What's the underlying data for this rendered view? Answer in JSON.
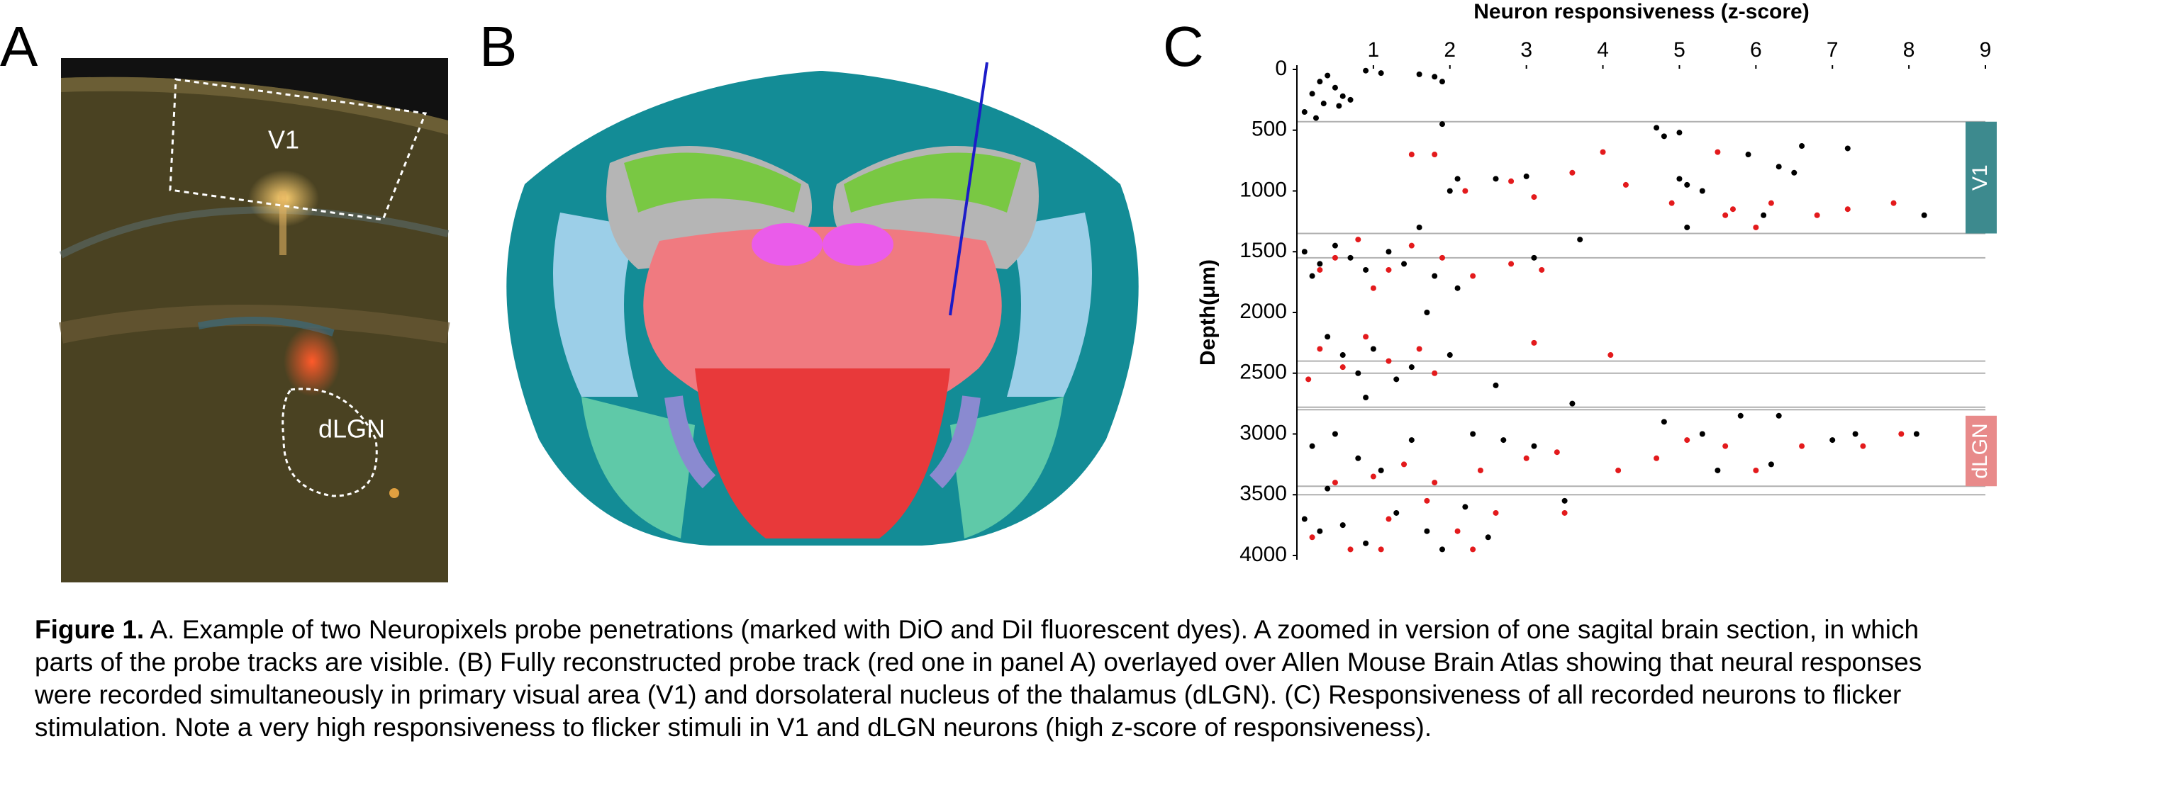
{
  "panels": [
    "A",
    "B",
    "C"
  ],
  "panel_a": {
    "labels": [
      "V1",
      "dLGN"
    ]
  },
  "caption": {
    "label": "Figure 1.",
    "text": "A. Example of two Neuropixels probe penetrations (marked with DiO and DiI fluorescent dyes). A zoomed in version of one sagital brain section, in which parts of the probe tracks are visible. (B) Fully reconstructed probe track (red one in panel A) overlayed over Allen Mouse Brain Atlas showing that neural responses were recorded simultaneously in primary visual area (V1) and dorsolateral nucleus of the thalamus (dLGN). (C) Responsiveness of all recorded neurons to flicker stimulation. Note a very high responsiveness to flicker stimuli in V1 and dLGN neurons (high z-score of responsiveness)."
  },
  "chart_data": {
    "type": "scatter",
    "xlabel": "Neuron responsiveness (z-score)",
    "ylabel": "Depth(μm)",
    "xlim": [
      0,
      9
    ],
    "xticks": [
      1,
      2,
      3,
      4,
      5,
      6,
      7,
      8,
      9
    ],
    "ylim": [
      0,
      4000
    ],
    "yticks": [
      0,
      500,
      1000,
      1500,
      2000,
      2500,
      3000,
      3500,
      4000
    ],
    "inverted_y": true,
    "region_lines": [
      430,
      1350,
      1550,
      2400,
      2500,
      2780,
      2800,
      3430,
      3500
    ],
    "regions": [
      {
        "label": "V1",
        "ylim": [
          430,
          1350
        ],
        "color": "#3d8a8e"
      },
      {
        "label": "dLGN",
        "ylim": [
          2850,
          3430
        ],
        "color": "#e88a8a"
      }
    ],
    "series": [
      {
        "color": "#000000",
        "x": [
          0.1,
          0.2,
          0.3,
          0.35,
          0.4,
          0.5,
          0.55,
          0.6,
          0.7,
          0.9,
          1.1,
          1.6,
          1.8,
          1.9,
          0.25,
          1.9,
          2.0,
          2.1,
          2.6,
          3.0,
          4.7,
          4.8,
          5.0,
          5.0,
          5.1,
          5.3,
          5.9,
          6.1,
          6.3,
          6.5,
          7.2,
          8.2,
          5.1,
          6.6,
          0.1,
          0.2,
          0.3,
          0.5,
          0.7,
          0.9,
          1.2,
          1.4,
          1.6,
          1.8,
          0.4,
          0.6,
          0.8,
          1.0,
          1.3,
          1.5,
          2.0,
          2.6,
          3.1,
          3.7,
          3.6,
          0.9,
          2.1,
          1.7,
          0.2,
          0.5,
          0.8,
          1.1,
          1.5,
          2.3,
          2.7,
          3.1,
          4.8,
          5.3,
          5.8,
          6.3,
          7.0,
          7.3,
          8.1,
          6.2,
          5.5,
          0.1,
          0.3,
          0.6,
          0.9,
          1.3,
          1.7,
          2.2,
          2.5,
          3.5,
          0.4,
          1.9
        ],
        "values": [
          350,
          200,
          100,
          280,
          50,
          150,
          300,
          220,
          250,
          10,
          30,
          40,
          60,
          100,
          400,
          450,
          1000,
          900,
          900,
          880,
          480,
          550,
          520,
          900,
          950,
          1000,
          700,
          1200,
          800,
          850,
          650,
          1200,
          1300,
          630,
          1500,
          1700,
          1600,
          1450,
          1550,
          1650,
          1500,
          1600,
          1300,
          1700,
          2200,
          2350,
          2500,
          2300,
          2550,
          2450,
          2350,
          2600,
          1550,
          1400,
          2750,
          2700,
          1800,
          2000,
          3100,
          3000,
          3200,
          3300,
          3050,
          3000,
          3050,
          3100,
          2900,
          3000,
          2850,
          2850,
          3050,
          3000,
          3000,
          3250,
          3300,
          3700,
          3800,
          3750,
          3900,
          3650,
          3800,
          3600,
          3850,
          3550,
          3450,
          3950
        ]
      },
      {
        "color": "#e31a1c",
        "x": [
          1.5,
          1.8,
          2.2,
          2.8,
          3.1,
          3.6,
          4.0,
          4.3,
          4.9,
          5.7,
          6.2,
          6.8,
          7.2,
          7.8,
          5.5,
          6.0,
          5.6,
          0.3,
          0.5,
          0.8,
          1.0,
          1.2,
          1.5,
          1.9,
          2.3,
          2.8,
          3.2,
          0.3,
          0.6,
          0.9,
          1.2,
          1.6,
          1.8,
          3.1,
          4.1,
          0.15,
          0.5,
          1.0,
          1.4,
          1.8,
          2.4,
          3.0,
          3.4,
          4.2,
          4.7,
          5.1,
          5.6,
          6.0,
          6.6,
          7.4,
          7.9,
          0.2,
          0.7,
          1.2,
          1.7,
          2.1,
          2.6,
          3.5,
          1.1,
          2.3
        ],
        "values": [
          700,
          700,
          1000,
          920,
          1050,
          850,
          680,
          950,
          1100,
          1150,
          1100,
          1200,
          1150,
          1100,
          680,
          1300,
          1200,
          1650,
          1550,
          1400,
          1800,
          1650,
          1450,
          1550,
          1700,
          1600,
          1650,
          2300,
          2450,
          2200,
          2400,
          2300,
          2500,
          2250,
          2350,
          2550,
          3400,
          3350,
          3250,
          3400,
          3300,
          3200,
          3150,
          3300,
          3200,
          3050,
          3100,
          3300,
          3100,
          3100,
          3000,
          3850,
          3950,
          3700,
          3550,
          3800,
          3650,
          3650,
          3950,
          3950
        ]
      }
    ]
  }
}
